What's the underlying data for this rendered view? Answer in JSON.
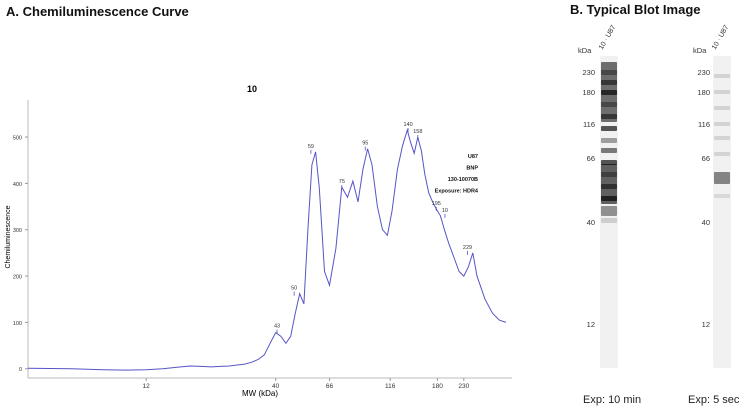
{
  "panel_a": {
    "title": "A. Chemiluminescence Curve"
  },
  "panel_b": {
    "title": "B.   Typical Blot Image",
    "kda_label": "kDa",
    "mw_ticks": [
      "230",
      "180",
      "116",
      "66",
      "40",
      "12"
    ],
    "lanes": [
      {
        "label": "10 · U87",
        "exposure": "Exp: 10 min"
      },
      {
        "label": "10 · U87",
        "exposure": "Exp: 5 sec"
      }
    ]
  },
  "chart_data": {
    "type": "line",
    "title": "10",
    "xlabel": "MW (kDa)",
    "ylabel": "Chemiluminescence",
    "x_scale": "log",
    "xlim": [
      4,
      360
    ],
    "ylim": [
      -20,
      580
    ],
    "x_ticks": [
      12,
      40,
      66,
      116,
      180,
      230
    ],
    "y_ticks": [
      0,
      100,
      200,
      300,
      400,
      500
    ],
    "grid": false,
    "annotation_lines": [
      "U87",
      "BNP",
      "130-10070B",
      "Exposure: HDR4"
    ],
    "peak_labels": [
      {
        "label": "43",
        "x": 40.5,
        "y": 80
      },
      {
        "label": "50",
        "x": 47.5,
        "y": 162
      },
      {
        "label": "59",
        "x": 55.5,
        "y": 468
      },
      {
        "label": "75",
        "x": 74,
        "y": 392
      },
      {
        "label": "95",
        "x": 92,
        "y": 475
      },
      {
        "label": "140",
        "x": 137,
        "y": 515
      },
      {
        "label": "158",
        "x": 150,
        "y": 500
      },
      {
        "label": "195",
        "x": 178,
        "y": 345
      },
      {
        "label": "10",
        "x": 193,
        "y": 330
      },
      {
        "label": "229",
        "x": 238,
        "y": 250
      }
    ],
    "series": [
      {
        "x": [
          4,
          6,
          8,
          10,
          12,
          14,
          16,
          18,
          20,
          22,
          24,
          26,
          28,
          30,
          32,
          34,
          36,
          38,
          40,
          42,
          44,
          46,
          48,
          50,
          52,
          54,
          56,
          58,
          60,
          63,
          66,
          70,
          74,
          78,
          82,
          86,
          90,
          94,
          98,
          103,
          108,
          113,
          118,
          124,
          130,
          136,
          140,
          145,
          150,
          155,
          160,
          166,
          172,
          178,
          185,
          192,
          200,
          210,
          220,
          230,
          240,
          250,
          260,
          280,
          300,
          320,
          340
        ],
        "y": [
          1,
          0,
          -2,
          -3,
          -2,
          0,
          3,
          6,
          5,
          4,
          5,
          6,
          8,
          10,
          14,
          20,
          30,
          55,
          78,
          70,
          55,
          70,
          120,
          162,
          140,
          300,
          440,
          468,
          390,
          210,
          180,
          260,
          392,
          370,
          405,
          360,
          430,
          475,
          440,
          350,
          300,
          288,
          340,
          430,
          480,
          515,
          490,
          465,
          500,
          470,
          420,
          380,
          360,
          345,
          330,
          300,
          270,
          240,
          210,
          200,
          220,
          250,
          200,
          150,
          120,
          105,
          100
        ]
      }
    ]
  }
}
